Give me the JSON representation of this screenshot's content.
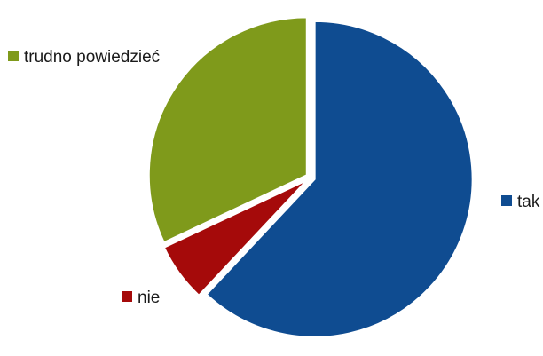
{
  "chart_data": {
    "type": "pie",
    "slices": [
      {
        "label": "tak",
        "value": 62,
        "color": "#0f4c91"
      },
      {
        "label": "nie",
        "value": 6,
        "color": "#a50a0a"
      },
      {
        "label": "trudno powiedzieć",
        "value": 32,
        "color": "#7f9a1b"
      }
    ],
    "legend": "labels beside slices"
  }
}
